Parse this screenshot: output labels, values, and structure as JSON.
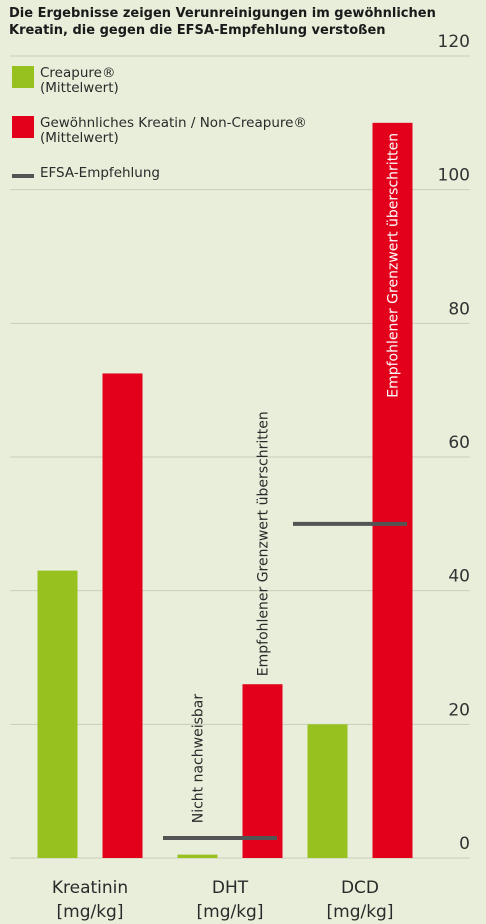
{
  "title_lines": [
    "Die Ergebnisse zeigen Verunreinigungen im gewöhnlichen",
    "Kreatin, die gegen die EFSA-Empfehlung verstoßen"
  ],
  "legend": [
    {
      "line1": "Creapure®",
      "line2": "(Mittelwert)"
    },
    {
      "line1": "Gewöhnliches Kreatin / Non-Creapure®",
      "line2": "(Mittelwert)"
    },
    {
      "line1": "EFSA-Empfehlung"
    }
  ],
  "colors": {
    "creapure": "#96c11f",
    "non_creapure": "#e2001a",
    "efsa": "#545454",
    "background": "#e8eeda"
  },
  "chart_data": {
    "type": "bar",
    "categories": [
      {
        "line1": "Kreatinin",
        "line2": "[mg/kg]"
      },
      {
        "line1": "DHT",
        "line2": "[mg/kg]"
      },
      {
        "line1": "DCD",
        "line2": "[mg/kg]"
      }
    ],
    "series": [
      {
        "name": "Creapure® (Mittelwert)",
        "values": [
          43,
          0.5,
          20
        ]
      },
      {
        "name": "Gewöhnliches Kreatin / Non-Creapure® (Mittelwert)",
        "values": [
          72.5,
          26,
          110
        ]
      }
    ],
    "reference_lines": [
      {
        "name": "EFSA-Empfehlung",
        "category_index": 1,
        "value": 3
      },
      {
        "name": "EFSA-Empfehlung",
        "category_index": 2,
        "value": 50
      }
    ],
    "annotations": [
      {
        "text": "Nicht nachweisbar",
        "category_index": 1,
        "series_index": 0
      },
      {
        "text": "Empfohlener Grenzwert überschritten",
        "category_index": 1,
        "series_index": 1
      },
      {
        "text": "Empfohlener Grenzwert überschritten",
        "category_index": 2,
        "series_index": 1
      }
    ],
    "yticks": [
      0,
      20,
      40,
      60,
      80,
      100,
      120
    ],
    "ylim": [
      0,
      120
    ],
    "y_axis_position": "right",
    "grid": false,
    "legend_position": "top-left"
  }
}
